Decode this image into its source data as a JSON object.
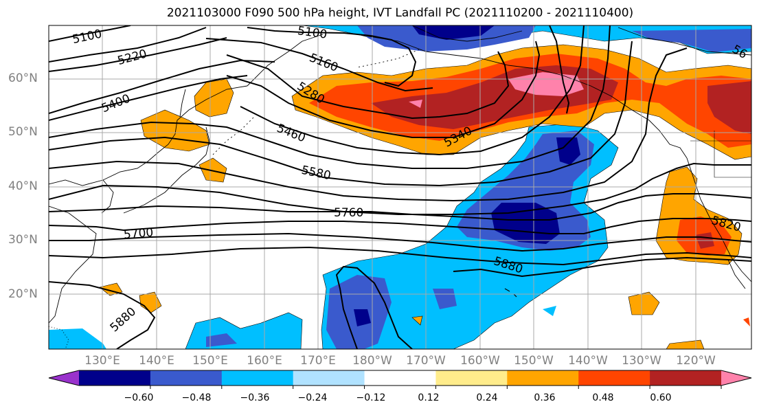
{
  "title": "2021103000 F090 500 hPa height, IVT Landfall PC (2021110200 - 2021110400)",
  "latitude_labels": [
    "60°N",
    "50°N",
    "40°N",
    "30°N",
    "20°N"
  ],
  "longitude_labels": [
    "130°E",
    "140°E",
    "150°E",
    "160°E",
    "170°E",
    "180°W",
    "170°W",
    "160°W",
    "150°W",
    "140°W",
    "130°W",
    "120°W"
  ],
  "contour_labels": {
    "c5100a": "5100",
    "c5100b": "5100",
    "c5220": "5220",
    "c5160": "5160",
    "c5400": "5400",
    "c5280": "5280",
    "c5340": "5340",
    "c5460": "5460",
    "c5580": "5580",
    "c5760": "5760",
    "c5700": "5700",
    "c5880a": "5880",
    "c5880b": "5880",
    "c5820": "5820",
    "c56x": "56"
  },
  "colorbar": {
    "tick_labels": [
      "−0.60",
      "−0.48",
      "−0.36",
      "−0.24",
      "−0.12",
      "0.12",
      "0.24",
      "0.36",
      "0.48",
      "0.60"
    ],
    "colors": [
      "#9932cc",
      "#00008b",
      "#3a5acd",
      "#00bfff",
      "#b0e2ff",
      "#ffffff",
      "#ffec8b",
      "#ffa500",
      "#ff4500",
      "#b22222",
      "#ff82ab"
    ]
  },
  "palette": {
    "gridline": "#a9a9a9",
    "contour": "#000000"
  }
}
